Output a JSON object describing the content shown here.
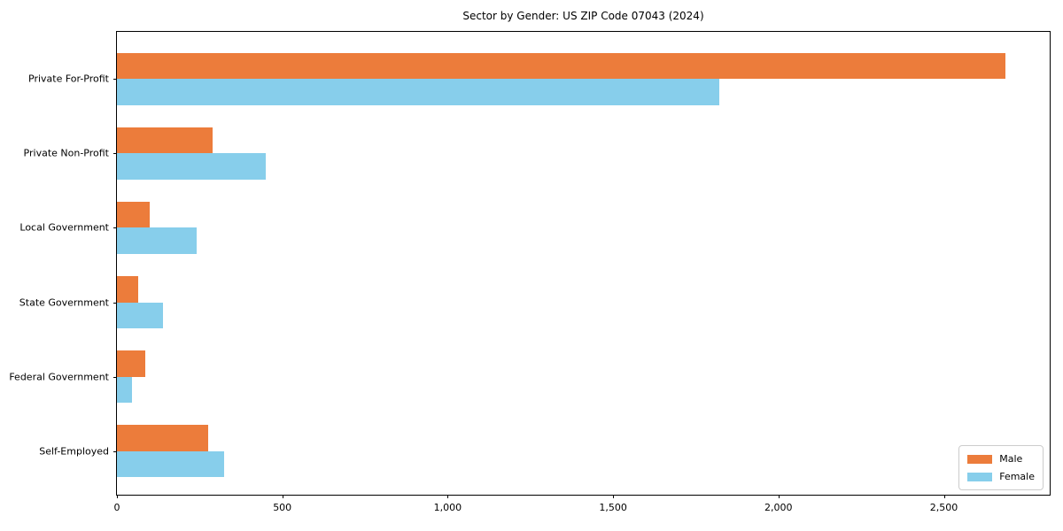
{
  "chart_data": {
    "type": "bar",
    "orientation": "horizontal",
    "title": "Sector by Gender: US ZIP Code 07043 (2024)",
    "categories": [
      "Private For-Profit",
      "Private Non-Profit",
      "Local Government",
      "State Government",
      "Federal Government",
      "Self-Employed"
    ],
    "series": [
      {
        "name": "Male",
        "color": "#EC7C3B",
        "values": [
          2685,
          290,
          100,
          65,
          85,
          275
        ]
      },
      {
        "name": "Female",
        "color": "#87CEEB",
        "values": [
          1820,
          450,
          240,
          140,
          45,
          325
        ]
      }
    ],
    "xlabel": "",
    "ylabel": "",
    "xlim": [
      0,
      2820
    ],
    "x_ticks": [
      0,
      500,
      1000,
      1500,
      2000,
      2500
    ],
    "x_tick_labels": [
      "0",
      "500",
      "1,000",
      "1,500",
      "2,000",
      "2,500"
    ],
    "grid": false,
    "legend": {
      "position": "lower right",
      "labels": [
        "Male",
        "Female"
      ]
    },
    "axis_color": "#000000",
    "background_color": "#ffffff"
  }
}
